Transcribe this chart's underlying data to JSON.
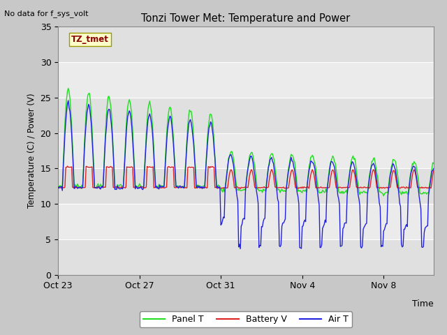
{
  "title": "Tonzi Tower Met: Temperature and Power",
  "xlabel": "Time",
  "ylabel": "Temperature (C) / Power (V)",
  "no_data_text": "No data for f_sys_volt",
  "annotation_text": "TZ_tmet",
  "ylim": [
    0,
    35
  ],
  "yticks": [
    0,
    5,
    10,
    15,
    20,
    25,
    30,
    35
  ],
  "bg_color": "#ffffff",
  "plot_bg_color": "#f0f0f0",
  "legend_items": [
    "Panel T",
    "Battery V",
    "Air T"
  ],
  "legend_colors": [
    "#00ee00",
    "#ee0000",
    "#0000ee"
  ],
  "x_tick_labels": [
    "Oct 23",
    "Oct 27",
    "Oct 31",
    "Nov 4",
    "Nov 8"
  ],
  "panel_color": "#22dd22",
  "battery_color": "#dd2222",
  "air_color": "#2222dd"
}
